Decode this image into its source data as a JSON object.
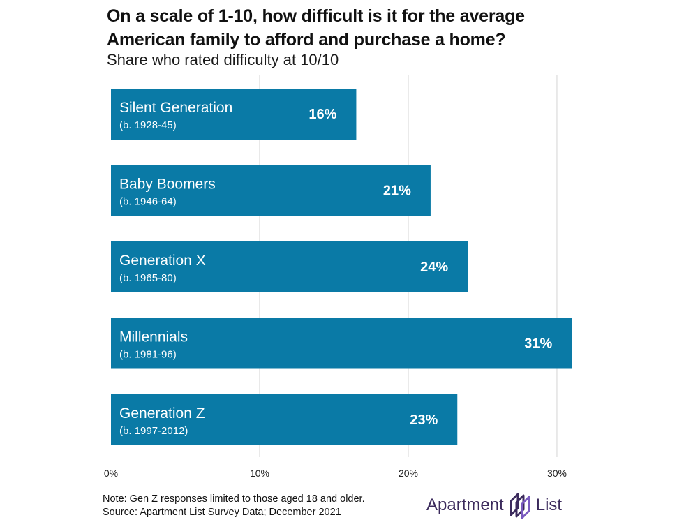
{
  "title_line1": "On a scale of 1-10, how difficult is it for the average",
  "title_line2": "American family to afford and purchase a home?",
  "subtitle": "Share who rated difficulty at 10/10",
  "chart_data": {
    "type": "bar",
    "orientation": "horizontal",
    "categories": [
      "Silent Generation",
      "Baby Boomers",
      "Generation X",
      "Millennials",
      "Generation Z"
    ],
    "sublabels": [
      "(b. 1928-45)",
      "(b. 1946-64)",
      "(b. 1965-80)",
      "(b. 1981-96)",
      "(b. 1997-2012)"
    ],
    "values": [
      16.5,
      21.5,
      24,
      31,
      23.3
    ],
    "value_labels": [
      "16%",
      "21%",
      "24%",
      "31%",
      "23%"
    ],
    "xlim": [
      0,
      30.8
    ],
    "xticks": [
      0,
      10,
      20,
      30
    ],
    "xtick_labels": [
      "0%",
      "10%",
      "20%",
      "30%"
    ],
    "bar_color": "#0a7aa6",
    "grid": true
  },
  "note_line1": "Note: Gen Z responses limited to those aged 18 and older.",
  "note_line2": "Source: Apartment List Survey Data; December 2021",
  "brand": {
    "name_left": "Apartment",
    "name_right": "List",
    "color": "#3b2a5c",
    "accent": "#7a5bbf"
  }
}
